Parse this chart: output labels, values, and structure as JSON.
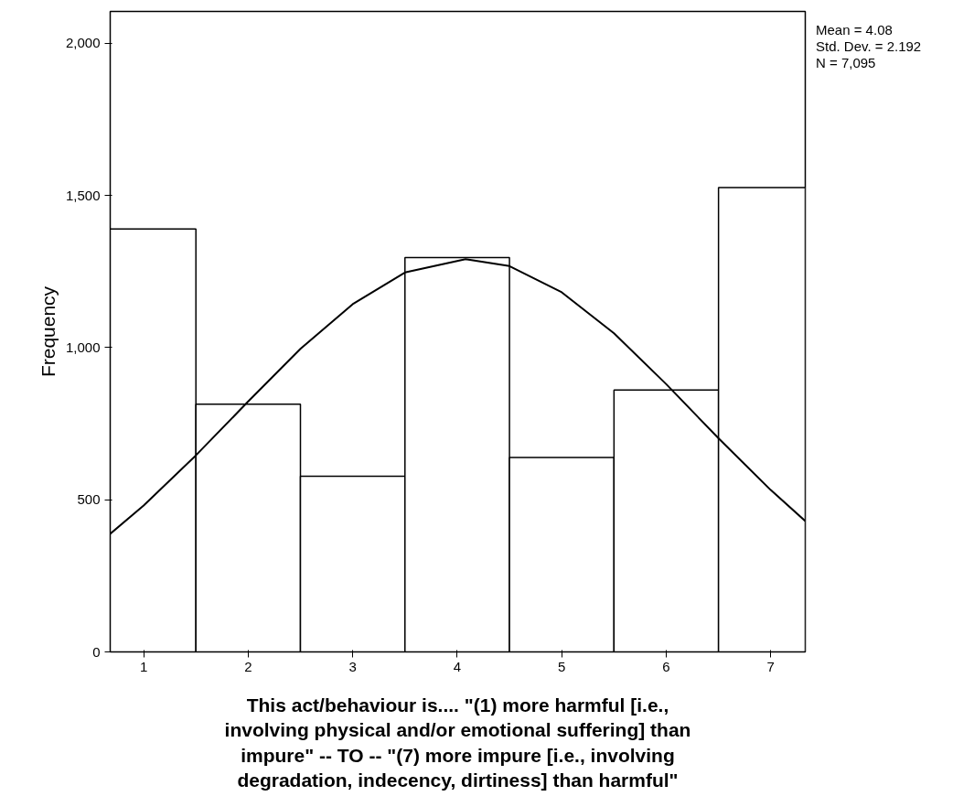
{
  "chart_data": {
    "type": "histogram",
    "xlabel": "This act/behaviour is.... \"(1) more harmful [i.e., involving physical and/or emotional suffering] than impure\" -- TO -- \"(7) more impure [i.e., involving degradation, indecency, dirtiness] than harmful\"",
    "ylabel": "Frequency",
    "bins": [
      0.68,
      1.5,
      2.5,
      3.5,
      4.5,
      5.5,
      6.5,
      7.33
    ],
    "values": [
      1390,
      814,
      577,
      1296,
      639,
      861,
      1526
    ],
    "color": "#ffffff",
    "series": [
      {
        "type": "line",
        "color": "#000000",
        "x": [
          0.68,
          1,
          1.5,
          2,
          2.5,
          3,
          3.5,
          4.08,
          4.5,
          5,
          5.5,
          6,
          6.5,
          7,
          7.33
        ],
        "values": [
          388,
          481,
          646,
          823,
          996,
          1143,
          1247,
          1291,
          1268,
          1182,
          1047,
          880,
          702,
          532,
          430
        ]
      }
    ],
    "xlim": [
      0.68,
      7.33
    ],
    "xticks": [
      1,
      2,
      3,
      4,
      5,
      6,
      7
    ],
    "ylim": [
      0,
      2105
    ],
    "yticks": [
      0,
      500,
      {
        "value": 1000,
        "label": "1,000"
      },
      {
        "value": 1500,
        "label": "1,500"
      },
      {
        "value": 2000,
        "label": "2,000"
      }
    ],
    "grid": false,
    "annotations": [
      "Mean = 4.08",
      "Std. Dev. = 2.192",
      "N = 7,095"
    ]
  }
}
